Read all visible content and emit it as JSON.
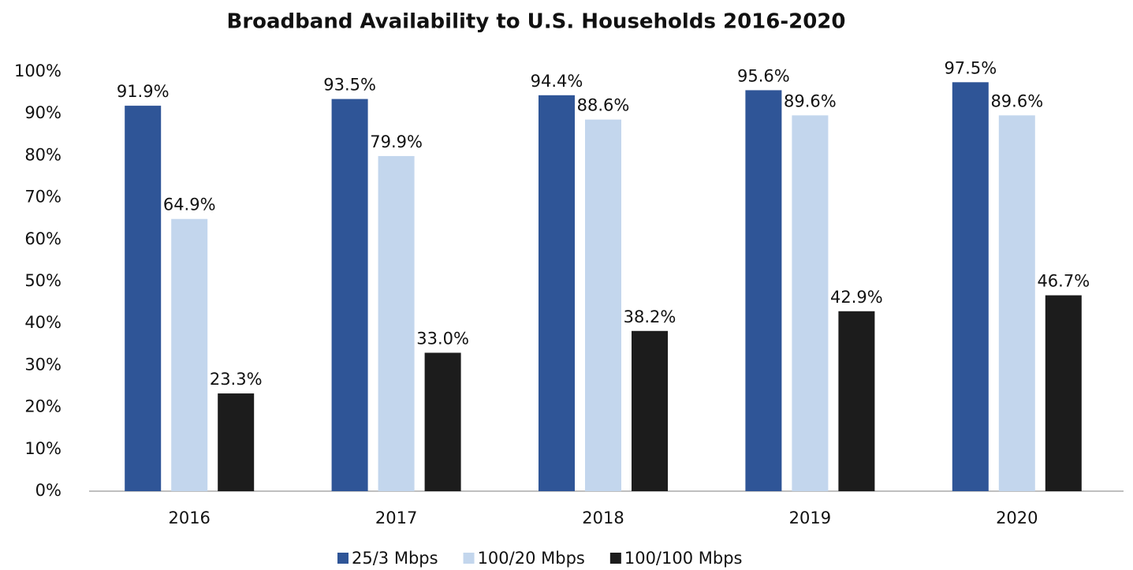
{
  "chart_data": {
    "type": "bar",
    "title": "Broadband Availability to U.S. Households 2016-2020",
    "categories": [
      "2016",
      "2017",
      "2018",
      "2019",
      "2020"
    ],
    "series": [
      {
        "name": "25/3 Mbps",
        "color": "#2f5597",
        "values": [
          91.9,
          93.5,
          94.4,
          95.6,
          97.5
        ],
        "value_labels": [
          "91.9%",
          "93.5%",
          "94.4%",
          "95.6%",
          "97.5%"
        ]
      },
      {
        "name": "100/20 Mbps",
        "color": "#c3d6ed",
        "values": [
          64.9,
          79.9,
          88.6,
          89.6,
          89.6
        ],
        "value_labels": [
          "64.9%",
          "79.9%",
          "88.6%",
          "89.6%",
          "89.6%"
        ]
      },
      {
        "name": "100/100 Mbps",
        "color": "#1c1c1c",
        "values": [
          23.3,
          33.0,
          38.2,
          42.9,
          46.7
        ],
        "value_labels": [
          "23.3%",
          "33.0%",
          "38.2%",
          "42.9%",
          "46.7%"
        ]
      }
    ],
    "ylim": [
      0,
      100
    ],
    "yticks": [
      {
        "value": 0,
        "label": "0%"
      },
      {
        "value": 10,
        "label": "10%"
      },
      {
        "value": 20,
        "label": "20%"
      },
      {
        "value": 30,
        "label": "30%"
      },
      {
        "value": 40,
        "label": "40%"
      },
      {
        "value": 50,
        "label": "50%"
      },
      {
        "value": 60,
        "label": "60%"
      },
      {
        "value": 70,
        "label": "70%"
      },
      {
        "value": 80,
        "label": "80%"
      },
      {
        "value": 90,
        "label": "90%"
      },
      {
        "value": 100,
        "label": "100%"
      }
    ],
    "grid": false,
    "legend": "bottom"
  }
}
